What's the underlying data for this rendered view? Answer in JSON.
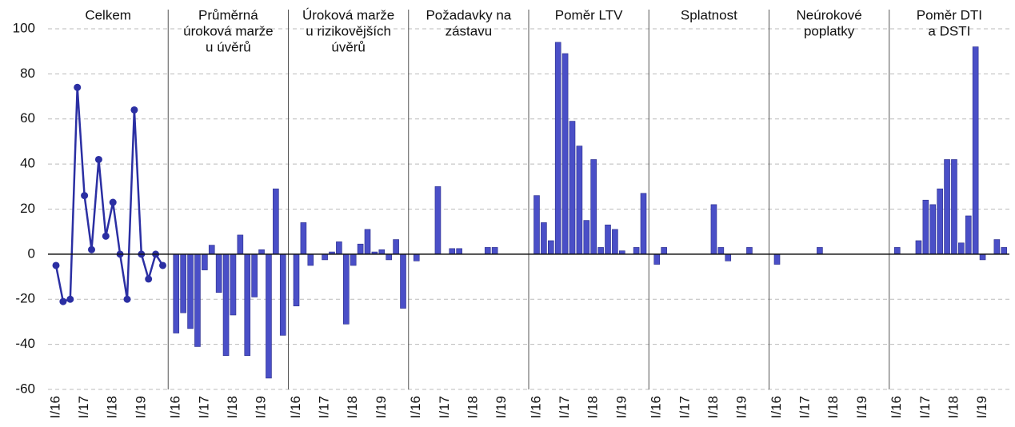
{
  "chart_data": {
    "ylim": [
      -60,
      100
    ],
    "yticks": [
      -60,
      -40,
      -20,
      0,
      20,
      40,
      60,
      80,
      100
    ],
    "grid": true,
    "panels": [
      {
        "type": "line",
        "title": [
          "Celkem"
        ],
        "color": "#2b2fa3",
        "categories": [
          "I/16",
          null,
          null,
          null,
          "I/17",
          null,
          null,
          null,
          "I/18",
          null,
          null,
          null,
          "I/19",
          null,
          null,
          null
        ],
        "values": [
          -5,
          -21,
          -20,
          74,
          26,
          2,
          42,
          8,
          23,
          0,
          -20,
          64,
          0,
          -11,
          0,
          -5
        ]
      },
      {
        "type": "bar",
        "title": [
          "Průměrná",
          "úroková marže",
          "u úvěrů"
        ],
        "color": "#4a4fc7",
        "categories": [
          "I/16",
          null,
          null,
          null,
          "I/17",
          null,
          null,
          null,
          "I/18",
          null,
          null,
          null,
          "I/19",
          null,
          null,
          null
        ],
        "values": [
          -35,
          -26,
          -33,
          -41,
          -7,
          4,
          -17,
          -45,
          -27,
          8.5,
          -45,
          -19,
          2,
          -55,
          29,
          -36
        ]
      },
      {
        "type": "bar",
        "title": [
          "Úroková marže",
          "u rizikovějších",
          "úvěrů"
        ],
        "color": "#4a4fc7",
        "categories": [
          "I/16",
          null,
          null,
          null,
          "I/17",
          null,
          null,
          null,
          "I/18",
          null,
          null,
          null,
          "I/19",
          null,
          null,
          null
        ],
        "values": [
          -23,
          14,
          -5,
          0,
          -2.5,
          1,
          5.5,
          -31,
          -5,
          4.5,
          11,
          1,
          2,
          -2.5,
          6.5,
          -24
        ]
      },
      {
        "type": "bar",
        "title": [
          "Požadavky na",
          "zástavu"
        ],
        "color": "#4a4fc7",
        "categories": [
          "I/16",
          null,
          null,
          null,
          "I/17",
          null,
          null,
          null,
          "I/18",
          null,
          null,
          null,
          "I/19",
          null,
          null,
          null
        ],
        "values": [
          -3,
          0,
          0,
          30,
          0,
          2.5,
          2.5,
          0,
          0,
          0,
          3,
          3,
          0,
          0,
          0,
          0
        ]
      },
      {
        "type": "bar",
        "title": [
          "Poměr LTV"
        ],
        "color": "#4a4fc7",
        "categories": [
          "I/16",
          null,
          null,
          null,
          "I/17",
          null,
          null,
          null,
          "I/18",
          null,
          null,
          null,
          "I/19",
          null,
          null,
          null
        ],
        "values": [
          26,
          14,
          6,
          94,
          89,
          59,
          48,
          15,
          42,
          3,
          13,
          11,
          1.5,
          0,
          3,
          27
        ]
      },
      {
        "type": "bar",
        "title": [
          "Splatnost"
        ],
        "color": "#4a4fc7",
        "categories": [
          "I/16",
          null,
          null,
          null,
          "I/17",
          null,
          null,
          null,
          "I/18",
          null,
          null,
          null,
          "I/19",
          null,
          null,
          null
        ],
        "values": [
          -4.5,
          3,
          0,
          0,
          0,
          0,
          0,
          0,
          22,
          3,
          -3,
          0,
          0,
          3,
          0,
          0
        ]
      },
      {
        "type": "bar",
        "title": [
          "Neúrokové",
          "poplatky"
        ],
        "color": "#4a4fc7",
        "categories": [
          "I/16",
          null,
          null,
          null,
          "I/17",
          null,
          null,
          null,
          "I/18",
          null,
          null,
          null,
          "I/19",
          null,
          null,
          null
        ],
        "values": [
          -4.5,
          0,
          0,
          0,
          0,
          0,
          3,
          0,
          0,
          0,
          0,
          0,
          0,
          0,
          0,
          0
        ]
      },
      {
        "type": "bar",
        "title": [
          "Poměr DTI",
          "a DSTI"
        ],
        "color": "#4a4fc7",
        "categories": [
          "I/16",
          null,
          null,
          null,
          "I/17",
          null,
          null,
          null,
          "I/18",
          null,
          null,
          null,
          "I/19",
          null,
          null,
          null
        ],
        "values": [
          3,
          0,
          0,
          6,
          24,
          22,
          29,
          42,
          42,
          5,
          17,
          92,
          -2.5,
          0,
          6.5,
          3
        ]
      }
    ]
  }
}
